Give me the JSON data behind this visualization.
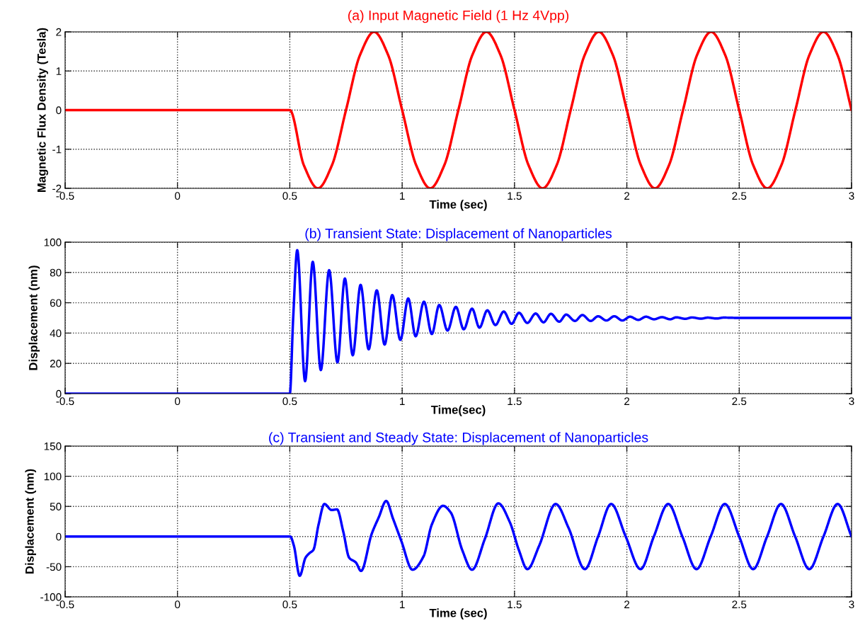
{
  "chart_data": [
    {
      "type": "line",
      "title": "(a) Input Magnetic Field (1 Hz 4Vpp)",
      "xlabel": "Time (sec)",
      "ylabel": "Magnetic Flux Density (Tesla)",
      "xlim": [
        -0.5,
        3
      ],
      "ylim": [
        -2,
        2
      ],
      "xticks": [
        -0.5,
        0,
        0.5,
        1,
        1.5,
        2,
        2.5,
        3
      ],
      "yticks": [
        -2,
        -1,
        0,
        1,
        2
      ],
      "grid": true,
      "line_style": "solid",
      "marker": "none",
      "x": [
        -0.5,
        0.5,
        0.5625,
        0.625,
        0.6875,
        0.75,
        0.8125,
        0.875,
        0.9375,
        1,
        1.0625,
        1.125,
        1.1875,
        1.25,
        1.3125,
        1.375,
        1.4375,
        1.5,
        1.5625,
        1.625,
        1.6875,
        1.75,
        1.8125,
        1.875,
        1.9375,
        2,
        2.0625,
        2.125,
        2.1875,
        2.25,
        2.3125,
        2.375,
        2.4375,
        2.5,
        2.5625,
        2.625,
        2.6875,
        2.75,
        2.8125,
        2.875,
        2.9375,
        3
      ],
      "series": [
        {
          "color": "#ff0000",
          "values": [
            0,
            0,
            -1.41,
            -2,
            -1.41,
            0,
            1.41,
            2,
            1.41,
            0,
            -1.41,
            -2,
            -1.41,
            0,
            1.41,
            2,
            1.41,
            0,
            -1.41,
            -2,
            -1.41,
            0,
            1.41,
            2,
            1.41,
            0,
            -1.41,
            -2,
            -1.41,
            0,
            1.41,
            2,
            1.41,
            0,
            -1.41,
            -2,
            -1.41,
            0,
            1.41,
            2,
            1.41,
            0
          ]
        }
      ]
    },
    {
      "type": "line",
      "title": "(b) Transient State: Displacement of Nanoparticles",
      "xlabel": "Time(sec)",
      "ylabel": "Displacement (nm)",
      "xlim": [
        -0.5,
        3
      ],
      "ylim": [
        0,
        100
      ],
      "xticks": [
        -0.5,
        0,
        0.5,
        1,
        1.5,
        2,
        2.5,
        3
      ],
      "yticks": [
        0,
        20,
        40,
        60,
        80,
        100
      ],
      "grid": true,
      "line_style": "solid",
      "marker": "none",
      "x": [
        -0.5,
        0.5,
        0.515,
        0.533,
        0.568,
        0.602,
        0.638,
        0.675,
        0.712,
        0.745,
        0.78,
        0.815,
        0.851,
        0.887,
        0.922,
        0.956,
        0.992,
        1.027,
        1.06,
        1.097,
        1.132,
        1.165,
        1.202,
        1.239,
        1.274,
        1.311,
        1.344,
        1.379,
        1.415,
        1.452,
        1.487,
        1.52,
        1.557,
        1.594,
        1.629,
        1.662,
        1.699,
        1.73,
        1.769,
        1.802,
        1.839,
        1.872,
        1.909,
        1.944,
        1.98,
        2.014,
        2.051,
        2.085,
        2.121,
        2.156,
        2.193,
        2.22,
        2.26,
        2.29,
        2.33,
        2.36,
        2.4,
        2.43,
        2.5,
        3
      ],
      "series": [
        {
          "color": "#0000ff",
          "values": [
            0,
            0,
            50,
            94.7,
            8.3,
            87,
            15.6,
            81.5,
            20.7,
            76,
            25.4,
            71.8,
            29.3,
            68.2,
            32.4,
            65.1,
            35.5,
            62.8,
            37.9,
            60.7,
            39.4,
            58.5,
            41.7,
            57.3,
            42.5,
            56.1,
            43.6,
            55,
            45.3,
            54.2,
            46.1,
            53.4,
            46.7,
            52.9,
            47.1,
            52.7,
            47.5,
            52.2,
            48,
            51.9,
            48,
            51.1,
            48.3,
            51.1,
            48.3,
            50.8,
            48.7,
            50.8,
            49.1,
            50.5,
            49.1,
            50.4,
            49.4,
            50.3,
            49.5,
            50.2,
            49.6,
            50.2,
            50,
            50
          ]
        }
      ]
    },
    {
      "type": "line",
      "title": "(c) Transient and Steady State: Displacement of Nanoparticles",
      "xlabel": "Time (sec)",
      "ylabel": "Displacement (nm)",
      "xlim": [
        -0.5,
        3
      ],
      "ylim": [
        -100,
        150
      ],
      "xticks": [
        -0.5,
        0,
        0.5,
        1,
        1.5,
        2,
        2.5,
        3
      ],
      "yticks": [
        -100,
        -50,
        0,
        50,
        100,
        150
      ],
      "grid": true,
      "line_style": "solid",
      "marker": "none",
      "x": [
        -0.5,
        0.502,
        0.518,
        0.544,
        0.57,
        0.586,
        0.605,
        0.628,
        0.654,
        0.686,
        0.71,
        0.738,
        0.764,
        0.794,
        0.817,
        0.864,
        0.896,
        0.929,
        0.959,
        0.996,
        1.046,
        1.095,
        1.132,
        1.182,
        1.216,
        1.268,
        1.311,
        1.368,
        1.428,
        1.479,
        1.52,
        1.557,
        1.61,
        1.683,
        1.741,
        1.813,
        1.872,
        1.93,
        1.995,
        2.061,
        2.12,
        2.184,
        2.247,
        2.31,
        2.373,
        2.436,
        2.5,
        2.562,
        2.624,
        2.686,
        2.749,
        2.812,
        2.875,
        2.938,
        3
      ],
      "series": [
        {
          "color": "#0000ff",
          "values": [
            0,
            0,
            -15,
            -65,
            -35,
            -28,
            -22,
            20,
            54,
            44,
            45,
            8,
            -35,
            -43,
            -57,
            4,
            32,
            59,
            30,
            -7,
            -55,
            -33,
            20,
            51,
            40,
            -23,
            -55,
            -4,
            55,
            24,
            -23,
            -54,
            -15,
            54,
            14,
            -54,
            0,
            54,
            0,
            -54,
            0,
            54,
            0,
            -54,
            0,
            54,
            0,
            -54,
            0,
            54,
            0,
            -54,
            0,
            54,
            0
          ]
        }
      ]
    }
  ]
}
